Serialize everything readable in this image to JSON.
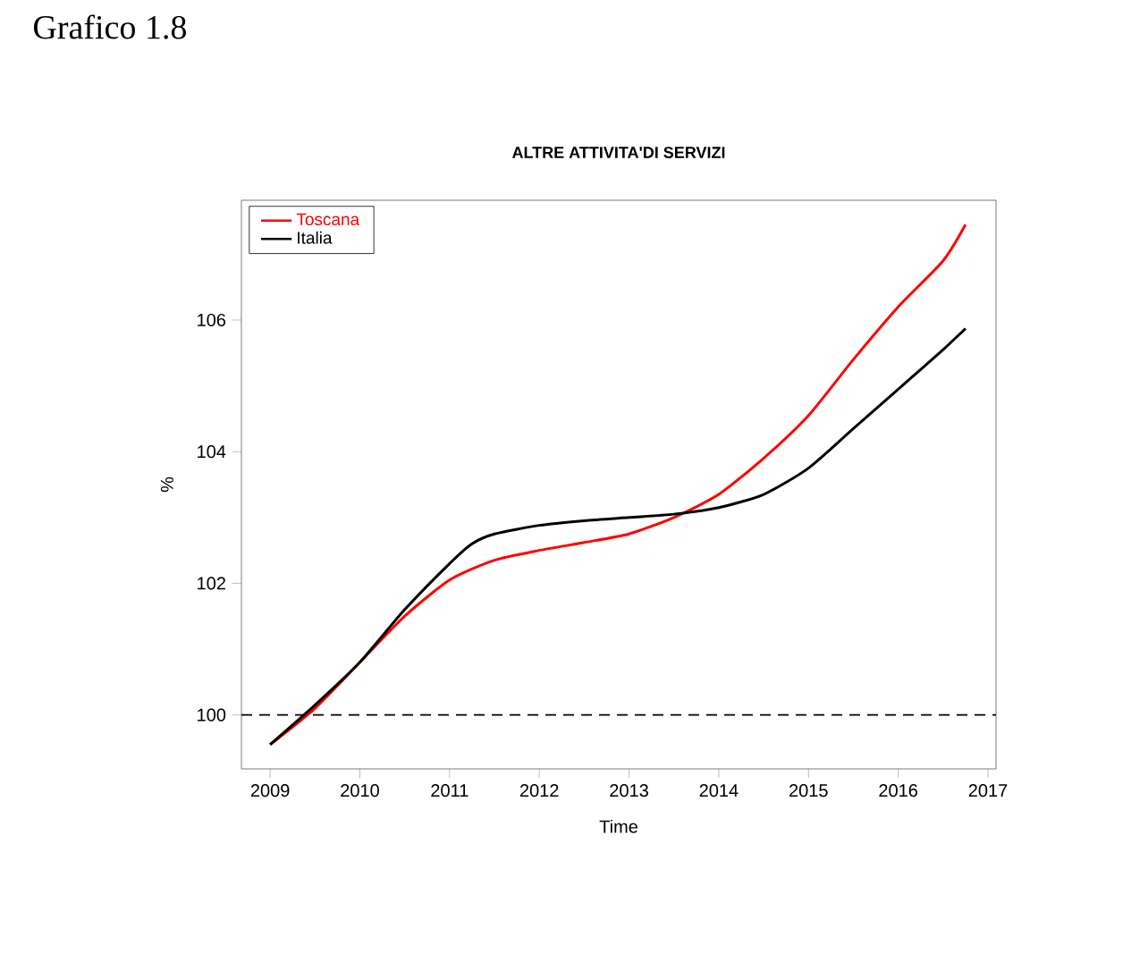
{
  "chart_data": {
    "type": "line",
    "title": "ALTRE ATTIVITA'DI SERVIZI",
    "xlabel": "Time",
    "ylabel": "%",
    "annotations": [
      "Grafico 1.8"
    ],
    "xlim": [
      2008.68,
      2017.09
    ],
    "ylim": [
      99.18,
      107.82
    ],
    "xticks": [
      2009,
      2010,
      2011,
      2012,
      2013,
      2014,
      2015,
      2016,
      2017
    ],
    "yticks": [
      100,
      102,
      104,
      106
    ],
    "grid": false,
    "legend": "top left",
    "line_style": "solid",
    "marker": "none",
    "ref_lines": [
      {
        "axis": "y",
        "value": 100,
        "line_style": "dashed",
        "color": "#000000"
      }
    ],
    "series": [
      {
        "name": "Toscana",
        "color": "#ff0000",
        "x": [
          2009,
          2009.5,
          2010,
          2010.5,
          2011,
          2011.5,
          2012,
          2012.5,
          2013,
          2013.5,
          2014,
          2014.5,
          2015,
          2015.5,
          2016,
          2016.5,
          2016.75
        ],
        "values": [
          99.55,
          100.1,
          100.8,
          101.5,
          102.05,
          102.35,
          102.5,
          102.62,
          102.75,
          103.0,
          103.35,
          103.9,
          104.55,
          105.4,
          106.2,
          106.9,
          107.45
        ]
      },
      {
        "name": "Italia",
        "color": "#000000",
        "x": [
          2009,
          2009.5,
          2010,
          2010.5,
          2011,
          2011.25,
          2011.5,
          2012,
          2012.5,
          2013,
          2013.5,
          2014,
          2014.5,
          2015,
          2015.5,
          2016,
          2016.5,
          2016.75
        ],
        "values": [
          99.55,
          100.15,
          100.8,
          101.6,
          102.3,
          102.6,
          102.75,
          102.88,
          102.95,
          103.0,
          103.05,
          103.15,
          103.35,
          103.75,
          104.35,
          104.95,
          105.55,
          105.87
        ]
      }
    ]
  }
}
